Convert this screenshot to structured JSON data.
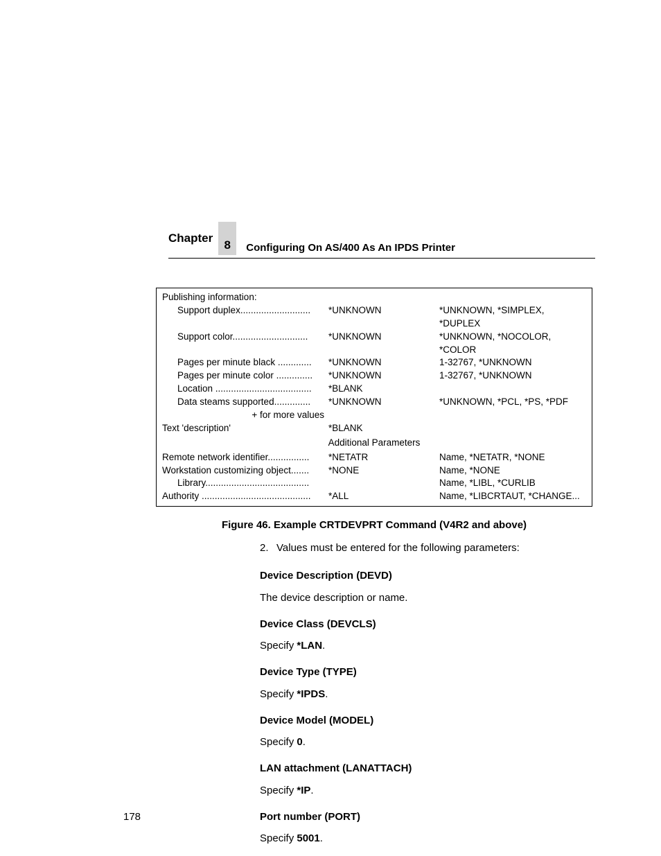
{
  "header": {
    "chapter_label": "Chapter",
    "chapter_number": "8",
    "chapter_title": "Configuring On AS/400 As An IPDS Printer"
  },
  "table": {
    "heading": "Publishing information:",
    "rows": [
      {
        "label": "Support duplex...........................",
        "value": "*UNKNOWN",
        "options": "*UNKNOWN, *SIMPLEX, *DUPLEX"
      },
      {
        "label": "Support color.............................",
        "value": "*UNKNOWN",
        "options": "*UNKNOWN, *NOCOLOR, *COLOR"
      },
      {
        "label": "Pages per minute black .............",
        "value": "*UNKNOWN",
        "options": "1-32767, *UNKNOWN"
      },
      {
        "label": "Pages per minute color ..............",
        "value": "*UNKNOWN",
        "options": "1-32767, *UNKNOWN"
      },
      {
        "label": "Location .....................................",
        "value": "*BLANK",
        "options": ""
      },
      {
        "label": "Data steams supported..............",
        "value": "*UNKNOWN",
        "options": "*UNKNOWN, *PCL, *PS, *PDF"
      }
    ],
    "more_values": "+ for more values",
    "text_desc_label": "Text 'description'",
    "text_desc_value": "*BLANK",
    "additional_params": "Additional Parameters",
    "rows2": [
      {
        "label": "Remote network identifier................",
        "value": "*NETATR",
        "options": "Name, *NETATR, *NONE"
      },
      {
        "label": "Workstation customizing object.......",
        "value": "*NONE",
        "options": "Name, *NONE"
      },
      {
        "label": "Library........................................",
        "value": "",
        "options": "Name, *LIBL, *CURLIB",
        "indent": true
      },
      {
        "label": "Authority ..........................................",
        "value": "*ALL",
        "options": "Name, *LIBCRTAUT, *CHANGE..."
      }
    ]
  },
  "figure_caption": "Figure 46. Example CRTDEVPRT Command (V4R2 and above)",
  "list_item": {
    "num": "2.",
    "text": "Values must be entered for the following parameters:"
  },
  "sections": [
    {
      "h": "Device Description (DEVD)",
      "p_pre": "The device description or name.",
      "p_bold": "",
      "p_post": ""
    },
    {
      "h": "Device Class (DEVCLS)",
      "p_pre": "Specify ",
      "p_bold": "*LAN",
      "p_post": "."
    },
    {
      "h": "Device Type (TYPE)",
      "p_pre": "Specify ",
      "p_bold": "*IPDS",
      "p_post": "."
    },
    {
      "h": "Device Model (MODEL)",
      "p_pre": "Specify ",
      "p_bold": "0",
      "p_post": "."
    },
    {
      "h": "LAN attachment (LANATTACH)",
      "p_pre": "Specify ",
      "p_bold": "*IP",
      "p_post": "."
    },
    {
      "h": "Port number (PORT)",
      "p_pre": "Specify ",
      "p_bold": "5001",
      "p_post": "."
    }
  ],
  "page_number": "178"
}
